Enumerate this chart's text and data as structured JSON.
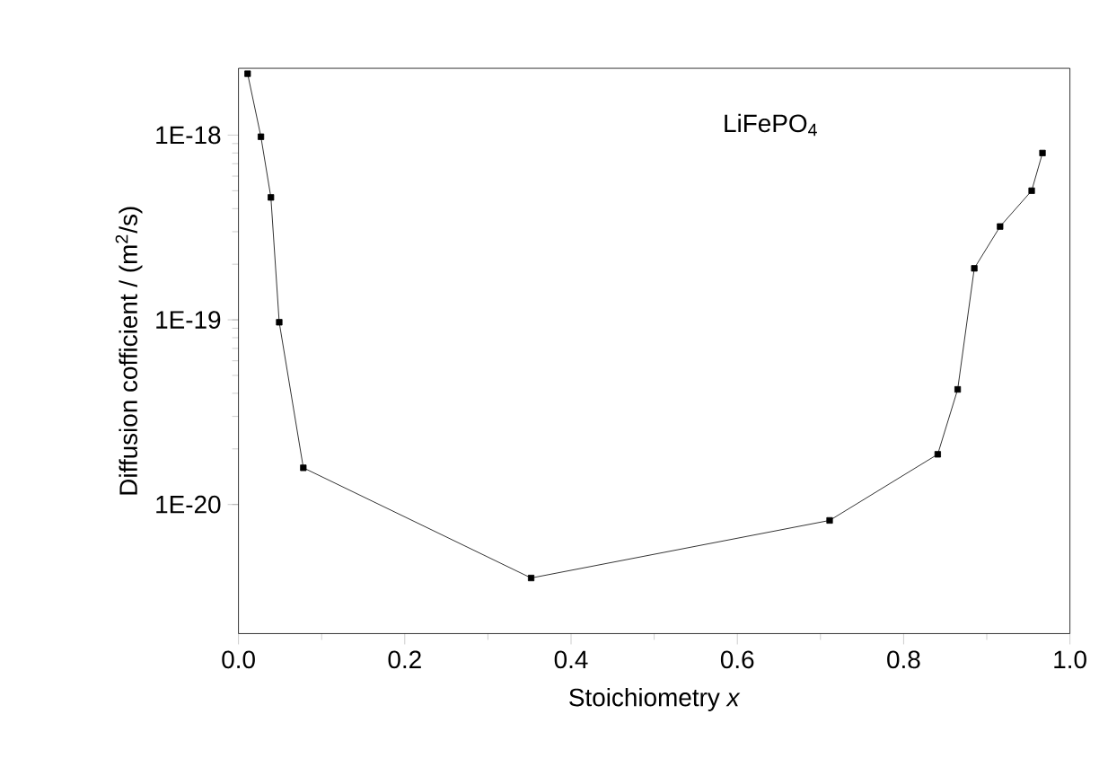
{
  "chart_data": {
    "type": "line",
    "xlabel": "Stoichiometry *x*",
    "ylabel": "Diffusion cofficient / (m$^{2}$/s)",
    "annotations": [
      "LiFePO$_{4}$"
    ],
    "x": [
      0.011,
      0.027,
      0.039,
      0.049,
      0.078,
      0.352,
      0.711,
      0.841,
      0.865,
      0.885,
      0.916,
      0.954,
      0.967
    ],
    "series": [
      {
        "color": "#000000",
        "values": [
          2.15e-18,
          9.8e-19,
          4.6e-19,
          9.7e-20,
          1.58e-20,
          4e-21,
          8.2e-21,
          1.87e-20,
          4.2e-20,
          1.9e-19,
          3.2e-19,
          5e-19,
          8e-19
        ]
      }
    ],
    "log": "y",
    "xlim": [
      0,
      1.0
    ],
    "ylim": [
      2e-21,
      2.3e-18
    ],
    "xticks": [
      {
        "value": 0,
        "label": "0.0"
      },
      {
        "value": 0.2,
        "label": "0.2"
      },
      {
        "value": 0.4,
        "label": "0.4"
      },
      {
        "value": 0.6,
        "label": "0.6"
      },
      {
        "value": 0.8,
        "label": "0.8"
      },
      {
        "value": 1.0,
        "label": "1.0"
      }
    ],
    "yticks": [
      {
        "value": 1e-20,
        "label": "1E-20"
      },
      {
        "value": 1e-19,
        "label": "1E-19"
      },
      {
        "value": 1e-18,
        "label": "1E-18"
      }
    ],
    "marker": "square",
    "line_style": "solid"
  }
}
